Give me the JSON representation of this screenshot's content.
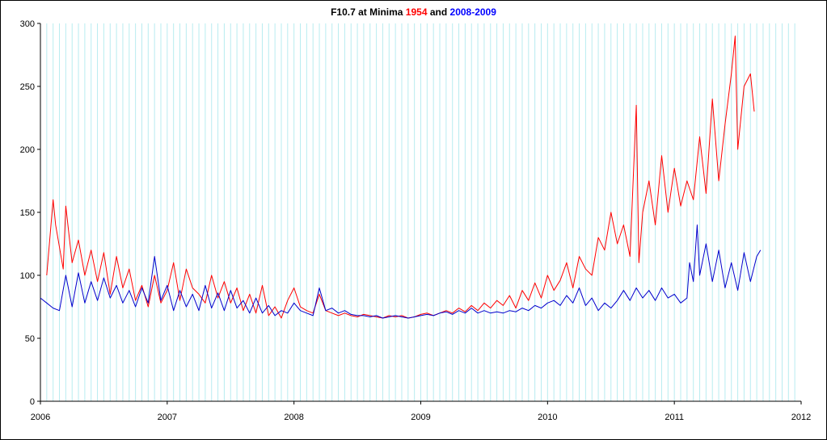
{
  "chart_data": {
    "type": "line",
    "title_parts": [
      {
        "text": "F10.7 at Minima ",
        "color": "#000000"
      },
      {
        "text": "1954",
        "color": "#ff0000"
      },
      {
        "text": " and ",
        "color": "#000000"
      },
      {
        "text": "2008-2009",
        "color": "#0000ff"
      }
    ],
    "xlabel": "",
    "ylabel": "",
    "xlim": [
      2006,
      2012
    ],
    "ylim": [
      0,
      300
    ],
    "x_ticks": [
      "2006",
      "2007",
      "2008",
      "2009",
      "2010",
      "2011",
      "2012"
    ],
    "y_ticks": [
      "0",
      "50",
      "100",
      "150",
      "200",
      "250",
      "300"
    ],
    "grid": "vertical light-cyan lines",
    "series": [
      {
        "color": "#ff0000",
        "x": [
          2006.05,
          2006.1,
          2006.12,
          2006.18,
          2006.2,
          2006.25,
          2006.3,
          2006.35,
          2006.4,
          2006.45,
          2006.5,
          2006.55,
          2006.6,
          2006.65,
          2006.7,
          2006.75,
          2006.8,
          2006.85,
          2006.9,
          2006.95,
          2007.0,
          2007.05,
          2007.1,
          2007.15,
          2007.2,
          2007.25,
          2007.3,
          2007.35,
          2007.4,
          2007.45,
          2007.5,
          2007.55,
          2007.6,
          2007.65,
          2007.7,
          2007.75,
          2007.8,
          2007.85,
          2007.9,
          2007.95,
          2008.0,
          2008.05,
          2008.1,
          2008.15,
          2008.2,
          2008.25,
          2008.3,
          2008.35,
          2008.4,
          2008.45,
          2008.5,
          2008.55,
          2008.6,
          2008.65,
          2008.7,
          2008.75,
          2008.8,
          2008.85,
          2008.9,
          2008.95,
          2009.0,
          2009.05,
          2009.1,
          2009.15,
          2009.2,
          2009.25,
          2009.3,
          2009.35,
          2009.4,
          2009.45,
          2009.5,
          2009.55,
          2009.6,
          2009.65,
          2009.7,
          2009.75,
          2009.8,
          2009.85,
          2009.9,
          2009.95,
          2010.0,
          2010.05,
          2010.1,
          2010.15,
          2010.2,
          2010.25,
          2010.3,
          2010.35,
          2010.4,
          2010.45,
          2010.5,
          2010.55,
          2010.6,
          2010.65,
          2010.7,
          2010.72,
          2010.75,
          2010.8,
          2010.85,
          2010.9,
          2010.95,
          2011.0,
          2011.05,
          2011.1,
          2011.15,
          2011.2,
          2011.25,
          2011.3,
          2011.35,
          2011.4,
          2011.45,
          2011.48,
          2011.5,
          2011.55,
          2011.6,
          2011.63
        ],
        "y": [
          100,
          160,
          140,
          105,
          155,
          110,
          128,
          100,
          120,
          95,
          118,
          85,
          115,
          90,
          105,
          80,
          92,
          75,
          100,
          78,
          88,
          110,
          80,
          105,
          90,
          85,
          78,
          100,
          82,
          95,
          78,
          90,
          72,
          85,
          70,
          92,
          68,
          75,
          66,
          80,
          90,
          75,
          72,
          70,
          85,
          72,
          70,
          68,
          70,
          68,
          67,
          69,
          68,
          67,
          66,
          68,
          67,
          68,
          66,
          67,
          69,
          70,
          68,
          70,
          72,
          70,
          74,
          71,
          76,
          72,
          78,
          74,
          80,
          76,
          84,
          74,
          88,
          80,
          94,
          82,
          100,
          88,
          96,
          110,
          90,
          115,
          105,
          100,
          130,
          120,
          150,
          125,
          140,
          115,
          235,
          110,
          150,
          175,
          140,
          195,
          150,
          185,
          155,
          175,
          160,
          210,
          165,
          240,
          175,
          220,
          260,
          290,
          200,
          250,
          260,
          230
        ]
      },
      {
        "color": "#0000cc",
        "x": [
          2006.0,
          2006.05,
          2006.1,
          2006.15,
          2006.2,
          2006.25,
          2006.3,
          2006.35,
          2006.4,
          2006.45,
          2006.5,
          2006.55,
          2006.6,
          2006.65,
          2006.7,
          2006.75,
          2006.8,
          2006.85,
          2006.9,
          2006.95,
          2007.0,
          2007.05,
          2007.1,
          2007.15,
          2007.2,
          2007.25,
          2007.3,
          2007.35,
          2007.4,
          2007.45,
          2007.5,
          2007.55,
          2007.6,
          2007.65,
          2007.7,
          2007.75,
          2007.8,
          2007.85,
          2007.9,
          2007.95,
          2008.0,
          2008.05,
          2008.1,
          2008.15,
          2008.2,
          2008.25,
          2008.3,
          2008.35,
          2008.4,
          2008.45,
          2008.5,
          2008.55,
          2008.6,
          2008.65,
          2008.7,
          2008.75,
          2008.8,
          2008.85,
          2008.9,
          2008.95,
          2009.0,
          2009.05,
          2009.1,
          2009.15,
          2009.2,
          2009.25,
          2009.3,
          2009.35,
          2009.4,
          2009.45,
          2009.5,
          2009.55,
          2009.6,
          2009.65,
          2009.7,
          2009.75,
          2009.8,
          2009.85,
          2009.9,
          2009.95,
          2010.0,
          2010.05,
          2010.1,
          2010.15,
          2010.2,
          2010.25,
          2010.3,
          2010.35,
          2010.4,
          2010.45,
          2010.5,
          2010.55,
          2010.6,
          2010.65,
          2010.7,
          2010.75,
          2010.8,
          2010.85,
          2010.9,
          2010.95,
          2011.0,
          2011.05,
          2011.1,
          2011.12,
          2011.15,
          2011.18,
          2011.2,
          2011.25,
          2011.3,
          2011.35,
          2011.4,
          2011.45,
          2011.5,
          2011.55,
          2011.6,
          2011.65,
          2011.68
        ],
        "y": [
          82,
          78,
          74,
          72,
          100,
          75,
          102,
          78,
          95,
          80,
          98,
          82,
          92,
          78,
          88,
          75,
          90,
          78,
          115,
          80,
          92,
          72,
          88,
          75,
          85,
          72,
          92,
          74,
          86,
          72,
          88,
          74,
          80,
          70,
          82,
          70,
          76,
          68,
          72,
          70,
          78,
          72,
          70,
          68,
          90,
          72,
          74,
          70,
          72,
          69,
          68,
          68,
          67,
          68,
          66,
          67,
          68,
          67,
          66,
          67,
          68,
          69,
          68,
          70,
          71,
          69,
          72,
          70,
          74,
          70,
          72,
          70,
          71,
          70,
          72,
          71,
          74,
          72,
          76,
          74,
          78,
          80,
          76,
          84,
          78,
          90,
          76,
          82,
          72,
          78,
          74,
          80,
          88,
          80,
          90,
          82,
          88,
          80,
          90,
          82,
          85,
          78,
          82,
          110,
          95,
          140,
          100,
          125,
          95,
          120,
          90,
          110,
          88,
          118,
          95,
          115,
          120
        ]
      }
    ]
  }
}
